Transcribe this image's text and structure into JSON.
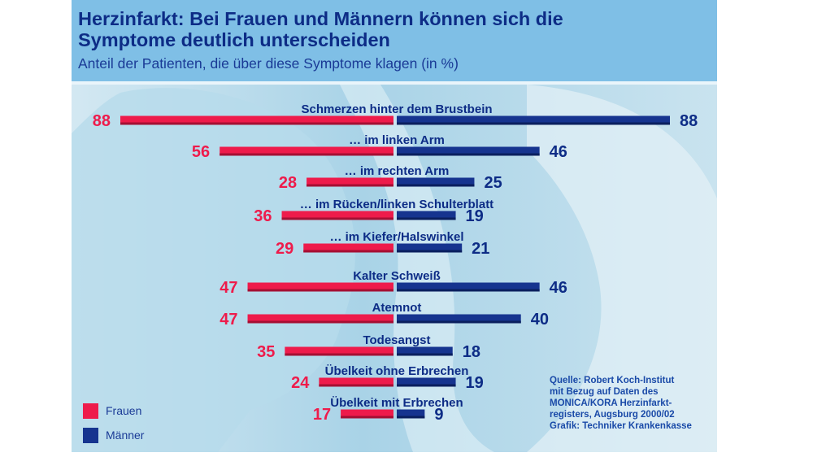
{
  "header": {
    "title_line1": "Herzinfarkt: Bei Frauen und Männern können sich die",
    "title_line2": "Symptome deutlich unterscheiden",
    "subtitle": "Anteil der Patienten, die über diese Symptome klagen (in %)"
  },
  "legend": {
    "items": [
      {
        "label": "Frauen",
        "color": "#ee1b4b"
      },
      {
        "label": "Männer",
        "color": "#16348f"
      }
    ]
  },
  "source": {
    "lines": [
      "Quelle: Robert Koch-Institut",
      "mit Bezug auf Daten des",
      "MONICA/KORA Herzinfarkt-",
      "registers, Augsburg 2000/02",
      "Grafik: Techniker Krankenkasse"
    ]
  },
  "colors": {
    "frauen": "#ee1b4b",
    "maenner": "#16348f",
    "header_bg": "#7fbfe6",
    "title": "#0d2c86"
  },
  "chart_data": {
    "type": "bar",
    "orientation": "horizontal-butterfly",
    "title": "Herzinfarkt: Bei Frauen und Männern können sich die Symptome deutlich unterscheiden",
    "subtitle": "Anteil der Patienten, die über diese Symptome klagen (in %)",
    "unit": "%",
    "categories": [
      "Schmerzen hinter dem Brustbein",
      "… im linken Arm",
      "… im rechten Arm",
      "… im Rücken/linken Schulterblatt",
      "… im Kiefer/Halswinkel",
      "Kalter Schweiß",
      "Atemnot",
      "Todesangst",
      "Übelkeit ohne Erbrechen",
      "Übelkeit mit Erbrechen"
    ],
    "series": [
      {
        "name": "Frauen",
        "color": "#ee1b4b",
        "side": "left",
        "values": [
          88,
          56,
          28,
          36,
          29,
          47,
          47,
          35,
          24,
          17
        ]
      },
      {
        "name": "Männer",
        "color": "#16348f",
        "side": "right",
        "values": [
          88,
          46,
          25,
          19,
          21,
          46,
          40,
          18,
          19,
          9
        ]
      }
    ],
    "xlim": [
      0,
      88
    ],
    "grid": false,
    "legend_position": "bottom-left",
    "data_labels": true
  }
}
